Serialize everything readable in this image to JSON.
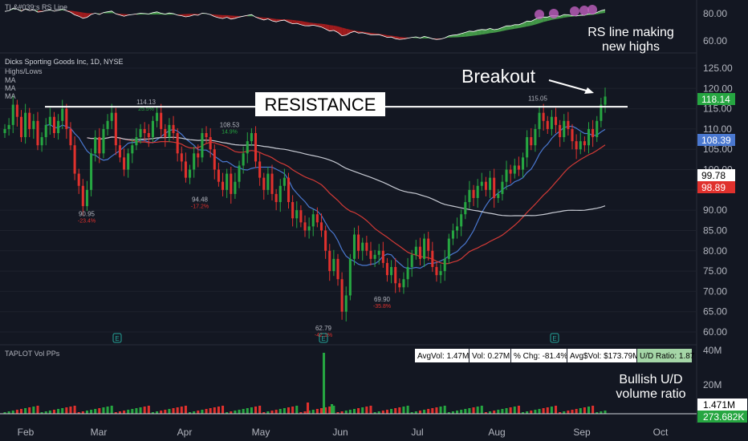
{
  "rs_panel": {
    "title": "TL&#039;s RS Line",
    "ticks": [
      "80.00",
      "60.00"
    ],
    "annotation": [
      "RS line making",
      "new highs"
    ]
  },
  "main_panel": {
    "symbol": "Dicks Sporting Goods Inc, 1D, NYSE",
    "legend": [
      "Highs/Lows",
      "MA",
      "MA",
      "MA"
    ],
    "resistance_label": "RESISTANCE",
    "breakout_label": "Breakout"
  },
  "volume_panel": {
    "title": "TAPLOT Vol PPs",
    "stats": [
      "AvgVol: 1.47M",
      "Vol: 0.27M",
      "% Chg: -81.4%",
      "Avg$Vol: $173.79M",
      "U/D Ratio: 1.87"
    ],
    "ticks": [
      "40M",
      "20M"
    ],
    "badges": [
      "1.471M",
      "273.682K"
    ],
    "annotation": [
      "Bullish U/D",
      "volume ratio"
    ]
  },
  "colors": {
    "background": "#131722",
    "up": "#26a641",
    "down": "#e0312d",
    "ma_fast": "#4a78d0",
    "ma_mid": "#d23a36",
    "ma_slow": "#c8cbd4",
    "rs_green": "#4cae4f",
    "rs_red": "#b71c1c",
    "rs_highlight": "#c060c0"
  },
  "chart_data": {
    "type": "candlestick",
    "y_axis": {
      "min": 60,
      "max": 125,
      "ticks": [
        "125.00",
        "120.00",
        "115.00",
        "110.00",
        "105.00",
        "100.00",
        "95.00",
        "90.00",
        "85.00",
        "80.00",
        "75.00",
        "70.00",
        "65.00",
        "60.00"
      ]
    },
    "x_axis": {
      "labels": [
        "Feb",
        "Mar",
        "Apr",
        "May",
        "Jun",
        "Jul",
        "Aug",
        "Sep",
        "Oct"
      ]
    },
    "resistance_level": 115.5,
    "price_badges": [
      {
        "value": "118.14",
        "price": 118.14,
        "color": "#26a641"
      },
      {
        "value": "108.39",
        "price": 108.39,
        "color": "#4a78d0"
      },
      {
        "value": "99.78",
        "price": 99.78,
        "color": "#ffffff"
      },
      {
        "value": "98.89",
        "price": 98.89,
        "color": "#e0312d"
      }
    ],
    "pivot_labels": [
      {
        "price": "114.13",
        "pct": "25.5%",
        "at": 114.13,
        "kind": "high"
      },
      {
        "price": "90.95",
        "pct": "-23.4%",
        "at": 90.95,
        "kind": "low"
      },
      {
        "price": "108.53",
        "pct": "14.9%",
        "at": 108.53,
        "kind": "high"
      },
      {
        "price": "94.48",
        "pct": "-17.2%",
        "at": 94.48,
        "kind": "low"
      },
      {
        "price": "62.79",
        "pct": "-42.1%",
        "at": 62.79,
        "kind": "low"
      },
      {
        "price": "69.90",
        "pct": "-35.8%",
        "at": 69.9,
        "kind": "low"
      },
      {
        "price": "115.05",
        "pct": "",
        "at": 115.05,
        "kind": "high"
      }
    ],
    "earnings_markers": [
      "E",
      "E",
      "E"
    ],
    "series": [
      {
        "name": "close",
        "values": [
          110,
          111,
          116,
          113,
          108,
          114,
          110,
          112,
          106,
          108,
          111,
          113,
          109,
          112,
          115,
          110,
          106,
          99,
          96,
          91,
          95,
          104,
          108,
          104,
          110,
          112,
          114,
          106,
          103,
          100,
          104,
          106,
          108,
          110,
          109,
          108,
          112,
          114,
          110,
          108,
          111,
          109,
          104,
          102,
          98,
          100,
          104,
          103,
          109,
          108,
          105,
          100,
          97,
          95,
          99,
          94,
          97,
          101,
          104,
          107,
          109,
          102,
          98,
          95,
          99,
          94,
          92,
          96,
          98,
          92,
          88,
          90,
          87,
          85,
          86,
          89,
          87,
          85,
          80,
          75,
          78,
          73,
          65,
          69,
          78,
          84,
          80,
          82,
          80,
          78,
          79,
          80,
          77,
          74,
          76,
          72,
          71,
          73,
          76,
          79,
          81,
          78,
          83,
          80,
          76,
          74,
          75,
          78,
          83,
          85,
          86,
          89,
          92,
          95,
          93,
          96,
          97,
          95,
          98,
          93,
          94,
          97,
          100,
          99,
          101,
          100,
          103,
          108,
          106,
          110,
          114,
          112,
          110,
          113,
          111,
          108,
          112,
          110,
          107,
          105,
          107,
          106,
          110,
          108,
          112,
          116,
          118
        ]
      }
    ]
  }
}
